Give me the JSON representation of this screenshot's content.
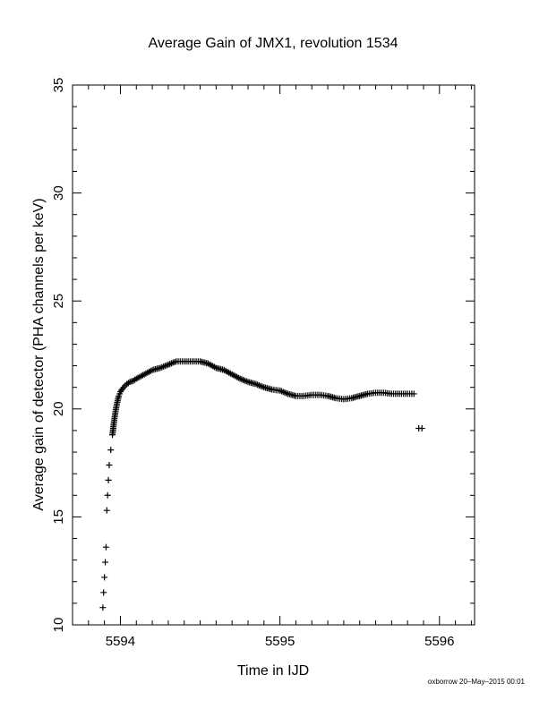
{
  "chart_data": {
    "type": "scatter",
    "title": "Average Gain of JMX1, revolution 1534",
    "xlabel": "Time in IJD",
    "ylabel": "Average gain of detector (PHA channels per keV)",
    "xlim": [
      5593.7,
      5596.22
    ],
    "ylim": [
      10,
      35
    ],
    "xticks": [
      5594,
      5595,
      5596
    ],
    "xtick_labels": [
      "5594",
      "5595",
      "5596"
    ],
    "yticks": [
      10,
      15,
      20,
      25,
      30,
      35
    ],
    "ytick_labels": [
      "10",
      "15",
      "20",
      "25",
      "30",
      "35"
    ],
    "grid": false,
    "marker": "plus",
    "color": "#000000",
    "series": [
      {
        "x": [
          5593.89,
          5593.895,
          5593.9,
          5593.905,
          5593.91,
          5593.915,
          5593.92,
          5593.925,
          5593.93,
          5593.94,
          5593.95,
          5593.96,
          5593.97,
          5593.98,
          5593.99,
          5594.0,
          5594.02,
          5594.04,
          5594.06,
          5594.08,
          5594.1,
          5594.15,
          5594.2,
          5594.25,
          5594.3,
          5594.35,
          5594.4,
          5594.45,
          5594.5,
          5594.55,
          5594.6,
          5594.65,
          5594.7,
          5594.75,
          5594.8,
          5594.85,
          5594.9,
          5594.95,
          5595.0,
          5595.05,
          5595.1,
          5595.15,
          5595.2,
          5595.25,
          5595.3,
          5595.35,
          5595.4,
          5595.45,
          5595.5,
          5595.55,
          5595.6,
          5595.65,
          5595.7,
          5595.75,
          5595.8,
          5595.84,
          5595.87,
          5595.89
        ],
        "y": [
          10.8,
          11.5,
          12.2,
          12.9,
          13.6,
          15.3,
          16.0,
          16.7,
          17.4,
          18.1,
          18.8,
          19.4,
          19.9,
          20.3,
          20.6,
          20.8,
          21.0,
          21.15,
          21.25,
          21.3,
          21.4,
          21.6,
          21.8,
          21.9,
          22.05,
          22.2,
          22.2,
          22.2,
          22.2,
          22.1,
          21.9,
          21.8,
          21.6,
          21.4,
          21.25,
          21.15,
          21.0,
          20.9,
          20.85,
          20.7,
          20.6,
          20.6,
          20.65,
          20.65,
          20.6,
          20.5,
          20.45,
          20.5,
          20.6,
          20.7,
          20.75,
          20.75,
          20.7,
          20.7,
          20.7,
          20.7,
          19.1,
          19.1
        ]
      }
    ]
  },
  "footer": {
    "credit": "oxborrow 20–May–2015 00:01"
  }
}
